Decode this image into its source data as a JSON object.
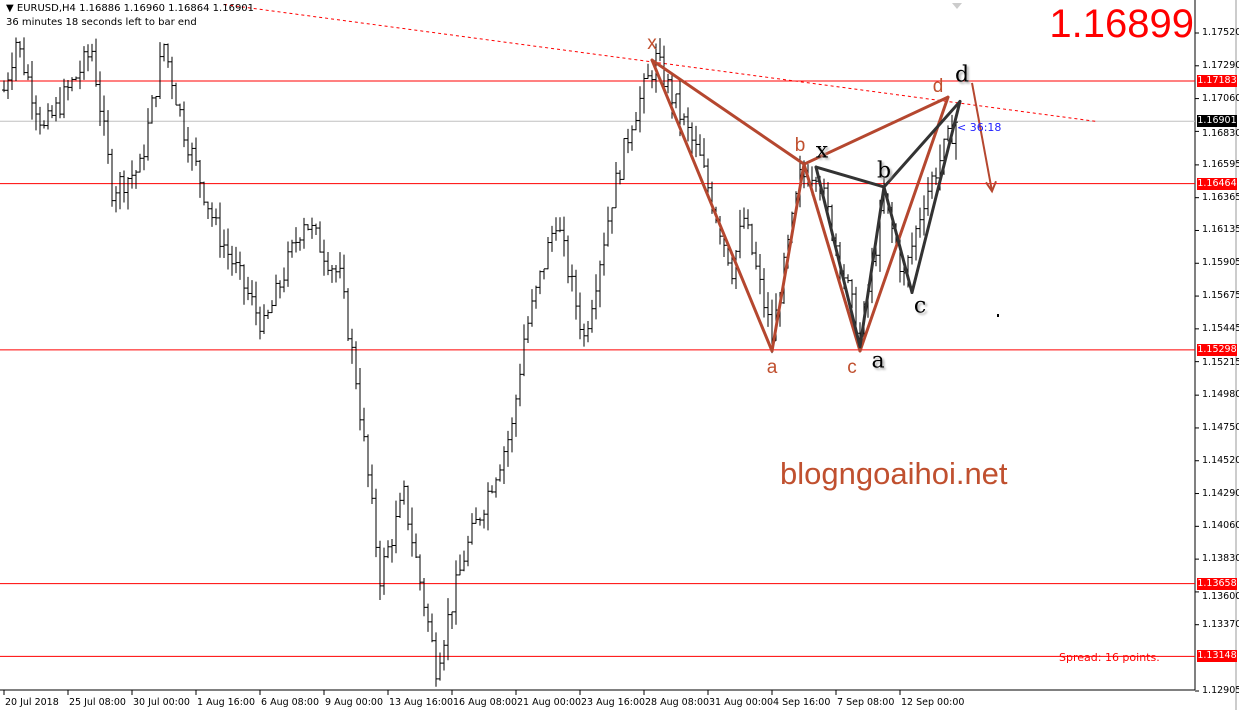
{
  "header": {
    "symbol_line": "EURUSD,H4  1.16886 1.16960 1.16864 1.16901",
    "timer_line": "36 minutes 18 seconds left to bar end"
  },
  "current_price_big": "1.16899",
  "watermark": "blogngoaihoi.net",
  "spread_text": "Spread: 16 points.",
  "bar_timer": "< 36:18",
  "colors": {
    "candles": "#000000",
    "levels": "#ff0000",
    "pattern_1": "#b5472f",
    "pattern_2": "#333333",
    "current_line": "#c0c0c0",
    "trendline": "#ff0000"
  },
  "chart_data": {
    "type": "ohlc",
    "symbol": "EURUSD",
    "timeframe": "H4",
    "ylim": [
      1.12905,
      1.1752
    ],
    "y_ticks": [
      "1.17520",
      "1.17290",
      "1.17060",
      "1.16830",
      "1.16595",
      "1.16365",
      "1.16135",
      "1.15905",
      "1.15675",
      "1.15445",
      "1.15215",
      "1.14980",
      "1.14750",
      "1.14520",
      "1.14290",
      "1.14060",
      "1.13830",
      "1.13600",
      "1.13370",
      "1.12905"
    ],
    "x_ticks": [
      {
        "label": "20 Jul 2018",
        "bar": 0
      },
      {
        "label": "25 Jul 08:00",
        "bar": 16
      },
      {
        "label": "30 Jul 00:00",
        "bar": 32
      },
      {
        "label": "1 Aug 16:00",
        "bar": 48
      },
      {
        "label": "6 Aug 08:00",
        "bar": 64
      },
      {
        "label": "9 Aug 00:00",
        "bar": 80
      },
      {
        "label": "13 Aug 16:00",
        "bar": 96
      },
      {
        "label": "16 Aug 08:00",
        "bar": 112
      },
      {
        "label": "21 Aug 00:00",
        "bar": 128
      },
      {
        "label": "23 Aug 16:00",
        "bar": 144
      },
      {
        "label": "28 Aug 08:00",
        "bar": 160
      },
      {
        "label": "31 Aug 00:00",
        "bar": 176
      },
      {
        "label": "4 Sep 16:00",
        "bar": 192
      },
      {
        "label": "7 Sep 08:00",
        "bar": 208
      },
      {
        "label": "12 Sep 00:00",
        "bar": 224
      }
    ],
    "price_path": [
      [
        0,
        1.1712
      ],
      [
        3,
        1.1747
      ],
      [
        10,
        1.1684
      ],
      [
        22,
        1.174
      ],
      [
        27,
        1.1643
      ],
      [
        34,
        1.1657
      ],
      [
        40,
        1.1744
      ],
      [
        45,
        1.1684
      ],
      [
        53,
        1.1615
      ],
      [
        65,
        1.1545
      ],
      [
        75,
        1.1622
      ],
      [
        84,
        1.158
      ],
      [
        88,
        1.151
      ],
      [
        94,
        1.1371
      ],
      [
        100,
        1.1427
      ],
      [
        108,
        1.1308
      ],
      [
        115,
        1.1385
      ],
      [
        127,
        1.1475
      ],
      [
        130,
        1.1538
      ],
      [
        138,
        1.1622
      ],
      [
        145,
        1.1538
      ],
      [
        152,
        1.1636
      ],
      [
        157,
        1.1691
      ],
      [
        163,
        1.1733
      ],
      [
        174,
        1.1663
      ],
      [
        182,
        1.1587
      ],
      [
        185,
        1.1622
      ],
      [
        192,
        1.1538
      ],
      [
        199,
        1.165
      ],
      [
        203,
        1.1657
      ],
      [
        209,
        1.1594
      ],
      [
        214,
        1.1538
      ],
      [
        220,
        1.1636
      ],
      [
        225,
        1.158
      ],
      [
        230,
        1.1636
      ],
      [
        238,
        1.169
      ]
    ],
    "horizontal_levels": [
      "1.17183",
      "1.16464",
      "1.15298",
      "1.13658",
      "1.13148"
    ],
    "current_price": "1.16901",
    "trendline": [
      [
        55,
        1.1772
      ],
      [
        273,
        1.169
      ]
    ],
    "pattern_1": {
      "points": [
        {
          "label": "x",
          "bar": 162,
          "price": 1.1733
        },
        {
          "label": "a",
          "bar": 192,
          "price": 1.1529
        },
        {
          "label": "b",
          "bar": 200,
          "price": 1.166
        },
        {
          "label": "c",
          "bar": 214,
          "price": 1.1529
        },
        {
          "label": "d",
          "bar": 236,
          "price": 1.1707
        }
      ]
    },
    "pattern_2": {
      "points": [
        {
          "label": "x",
          "bar": 203,
          "price": 1.1658
        },
        {
          "label": "a",
          "bar": 214,
          "price": 1.1532
        },
        {
          "label": "b",
          "bar": 220,
          "price": 1.1644
        },
        {
          "label": "c",
          "bar": 227,
          "price": 1.157
        },
        {
          "label": "d",
          "bar": 239,
          "price": 1.1704
        }
      ]
    },
    "arrow": {
      "from": [
        242,
        1.1717
      ],
      "to": [
        247,
        1.1641
      ]
    }
  }
}
